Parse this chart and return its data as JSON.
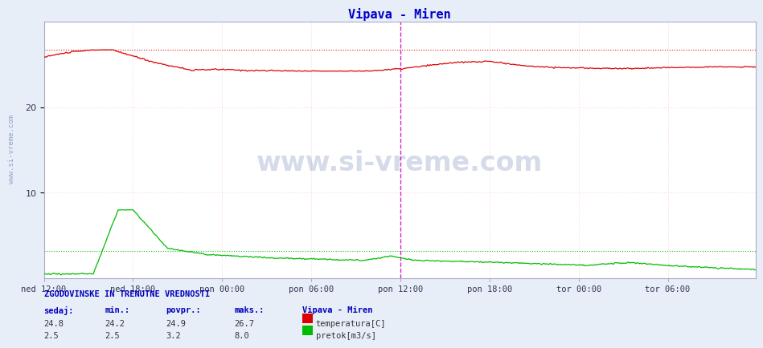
{
  "title": "Vipava - Miren",
  "title_color": "#0000cc",
  "bg_color": "#e8eef8",
  "plot_bg_color": "#ffffff",
  "grid_color": "#ffcccc",
  "ylim": [
    0,
    30
  ],
  "yticks": [
    10,
    20
  ],
  "x_labels": [
    "ned 12:00",
    "ned 18:00",
    "pon 00:00",
    "pon 06:00",
    "pon 12:00",
    "pon 18:00",
    "tor 00:00",
    "tor 06:00"
  ],
  "n_points": 576,
  "temp_color": "#dd0000",
  "flow_color": "#00bb00",
  "vline_color": "#cc00cc",
  "vline_pos": 288,
  "temp_max_line": 26.7,
  "flow_min_line": 3.2,
  "temp_min": 24.2,
  "temp_max": 26.7,
  "temp_avg": 24.9,
  "temp_current": 24.8,
  "flow_min": 2.5,
  "flow_max": 8.0,
  "flow_avg": 3.2,
  "flow_current": 2.5,
  "watermark": "www.si-vreme.com",
  "watermark_color": "#1a3a8a",
  "stats_title": "ZGODOVINSKE IN TRENUTNE VREDNOSTI",
  "stats_headers": [
    "sedaj:",
    "min.:",
    "povpr.:",
    "maks.:"
  ],
  "legend_title": "Vipava - Miren",
  "legend_items": [
    "temperatura[C]",
    "pretok[m3/s]"
  ]
}
